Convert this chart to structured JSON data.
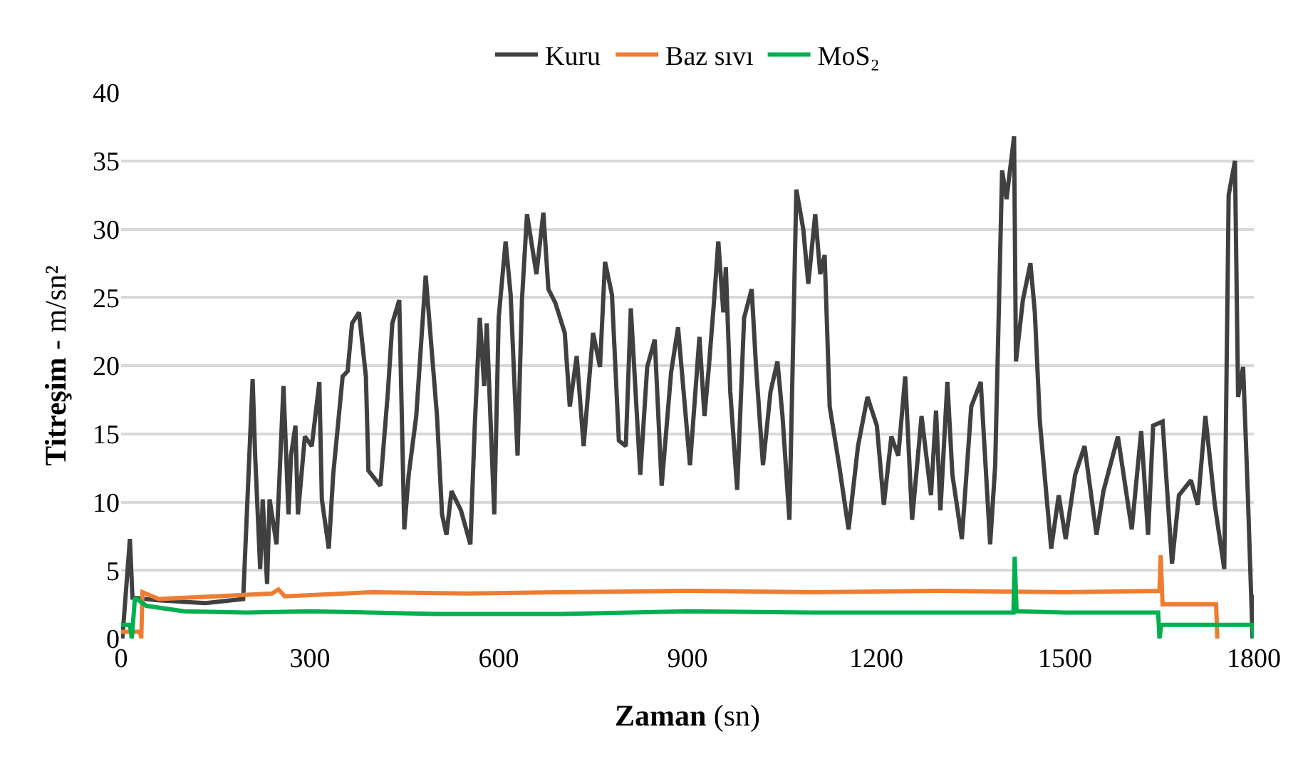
{
  "chart_data": {
    "type": "line",
    "xlabel": "Zaman (sn)",
    "ylabel": "Titreşim - m/sn²",
    "xlim": [
      0,
      1800
    ],
    "xticks": [
      0,
      300,
      600,
      900,
      1200,
      1500,
      1800
    ],
    "ylim": [
      0,
      40
    ],
    "yticks": [
      0,
      5,
      10,
      15,
      20,
      25,
      30,
      35,
      40
    ],
    "grid": "y",
    "legend": "top",
    "line_style": "solid",
    "marker": "none",
    "series": [
      {
        "name": "Kuru",
        "color": "#404040",
        "x": [
          2,
          14,
          18,
          59,
          134,
          194,
          209,
          213,
          221,
          225,
          232,
          236,
          247,
          258,
          266,
          270,
          277,
          281,
          292,
          303,
          315,
          319,
          330,
          337,
          352,
          360,
          367,
          378,
          389,
          393,
          412,
          424,
          431,
          442,
          450,
          457,
          469,
          484,
          502,
          510,
          517,
          525,
          540,
          555,
          562,
          570,
          577,
          581,
          593,
          600,
          611,
          619,
          630,
          637,
          645,
          660,
          671,
          679,
          690,
          705,
          713,
          724,
          735,
          750,
          761,
          769,
          780,
          791,
          802,
          810,
          825,
          836,
          848,
          859,
          874,
          885,
          904,
          919,
          927,
          934,
          942,
          949,
          957,
          961,
          968,
          979,
          990,
          1002,
          1009,
          1020,
          1032,
          1043,
          1051,
          1062,
          1073,
          1084,
          1092,
          1103,
          1111,
          1118,
          1126,
          1141,
          1156,
          1171,
          1186,
          1201,
          1212,
          1224,
          1235,
          1246,
          1257,
          1272,
          1287,
          1295,
          1302,
          1313,
          1321,
          1336,
          1351,
          1366,
          1381,
          1389,
          1400,
          1407,
          1419,
          1422,
          1433,
          1445,
          1452,
          1460,
          1478,
          1490,
          1501,
          1516,
          1531,
          1550,
          1561,
          1584,
          1606,
          1621,
          1632,
          1640,
          1655,
          1670,
          1681,
          1700,
          1711,
          1723,
          1738,
          1753,
          1760,
          1770,
          1775,
          1783,
          1790,
          1798,
          1800
        ],
        "values": [
          0,
          7.3,
          3,
          2.8,
          2.6,
          2.9,
          19,
          13.4,
          5.1,
          10.2,
          4,
          10.2,
          6.9,
          18.5,
          9.1,
          13.4,
          15.6,
          9.1,
          14.8,
          14.1,
          18.8,
          10.2,
          6.6,
          12,
          19.2,
          19.6,
          23.1,
          23.9,
          19.2,
          12.3,
          11.2,
          18.1,
          23.1,
          24.8,
          8,
          12,
          16.3,
          26.6,
          16.3,
          9.1,
          7.6,
          10.8,
          9.4,
          6.9,
          15.6,
          23.5,
          18.5,
          23.1,
          9.1,
          23.5,
          29.1,
          25.2,
          13.4,
          24.8,
          31.1,
          26.7,
          31.2,
          25.6,
          24.6,
          22.4,
          17,
          20.7,
          14.1,
          22.4,
          19.9,
          27.6,
          25.2,
          14.5,
          14.1,
          24.2,
          12,
          19.9,
          21.9,
          11.2,
          19.5,
          22.8,
          12.7,
          22.1,
          16.3,
          19.9,
          24.6,
          29.1,
          23.9,
          27.2,
          18.1,
          10.9,
          23.5,
          25.6,
          19.9,
          12.7,
          18.1,
          20.3,
          16.3,
          8.7,
          32.9,
          30,
          26,
          31.1,
          26.7,
          28.1,
          17,
          12.7,
          8,
          14.1,
          17.7,
          15.6,
          9.8,
          14.8,
          13.4,
          19.2,
          8.7,
          16.3,
          10.5,
          16.7,
          9.4,
          18.8,
          12,
          7.3,
          17,
          18.8,
          6.9,
          12.7,
          34.3,
          32.2,
          36.8,
          20.3,
          24.8,
          27.5,
          23.9,
          15.9,
          6.6,
          10.5,
          7.3,
          12,
          14.1,
          7.6,
          10.8,
          14.8,
          8,
          15.2,
          7.6,
          15.6,
          15.9,
          5.5,
          10.5,
          11.6,
          9.8,
          16.3,
          9.8,
          5.1,
          32.5,
          35,
          17.7,
          19.9,
          11.2,
          0,
          3.2
        ]
      },
      {
        "name": "Baz sıvı",
        "color": "#ed7d31",
        "x": [
          0,
          30,
          32,
          34,
          60,
          150,
          240,
          250,
          260,
          400,
          550,
          700,
          900,
          1100,
          1300,
          1500,
          1650,
          1652,
          1655,
          1740,
          1742
        ],
        "values": [
          0.5,
          0.5,
          0,
          3.4,
          2.9,
          3.1,
          3.3,
          3.6,
          3.1,
          3.4,
          3.3,
          3.4,
          3.5,
          3.4,
          3.5,
          3.4,
          3.5,
          6.1,
          2.5,
          2.5,
          0
        ]
      },
      {
        "name": "MoS₂",
        "color": "#00b050",
        "x": [
          0,
          14,
          17,
          22,
          40,
          100,
          200,
          300,
          500,
          700,
          900,
          1100,
          1300,
          1418,
          1420,
          1423,
          1500,
          1648,
          1650,
          1653,
          1798,
          1800
        ],
        "values": [
          1,
          1,
          0,
          3,
          2.4,
          2,
          1.9,
          2,
          1.8,
          1.8,
          2,
          1.9,
          1.9,
          1.9,
          6,
          2,
          1.9,
          1.9,
          0,
          1,
          1,
          0
        ]
      }
    ]
  }
}
